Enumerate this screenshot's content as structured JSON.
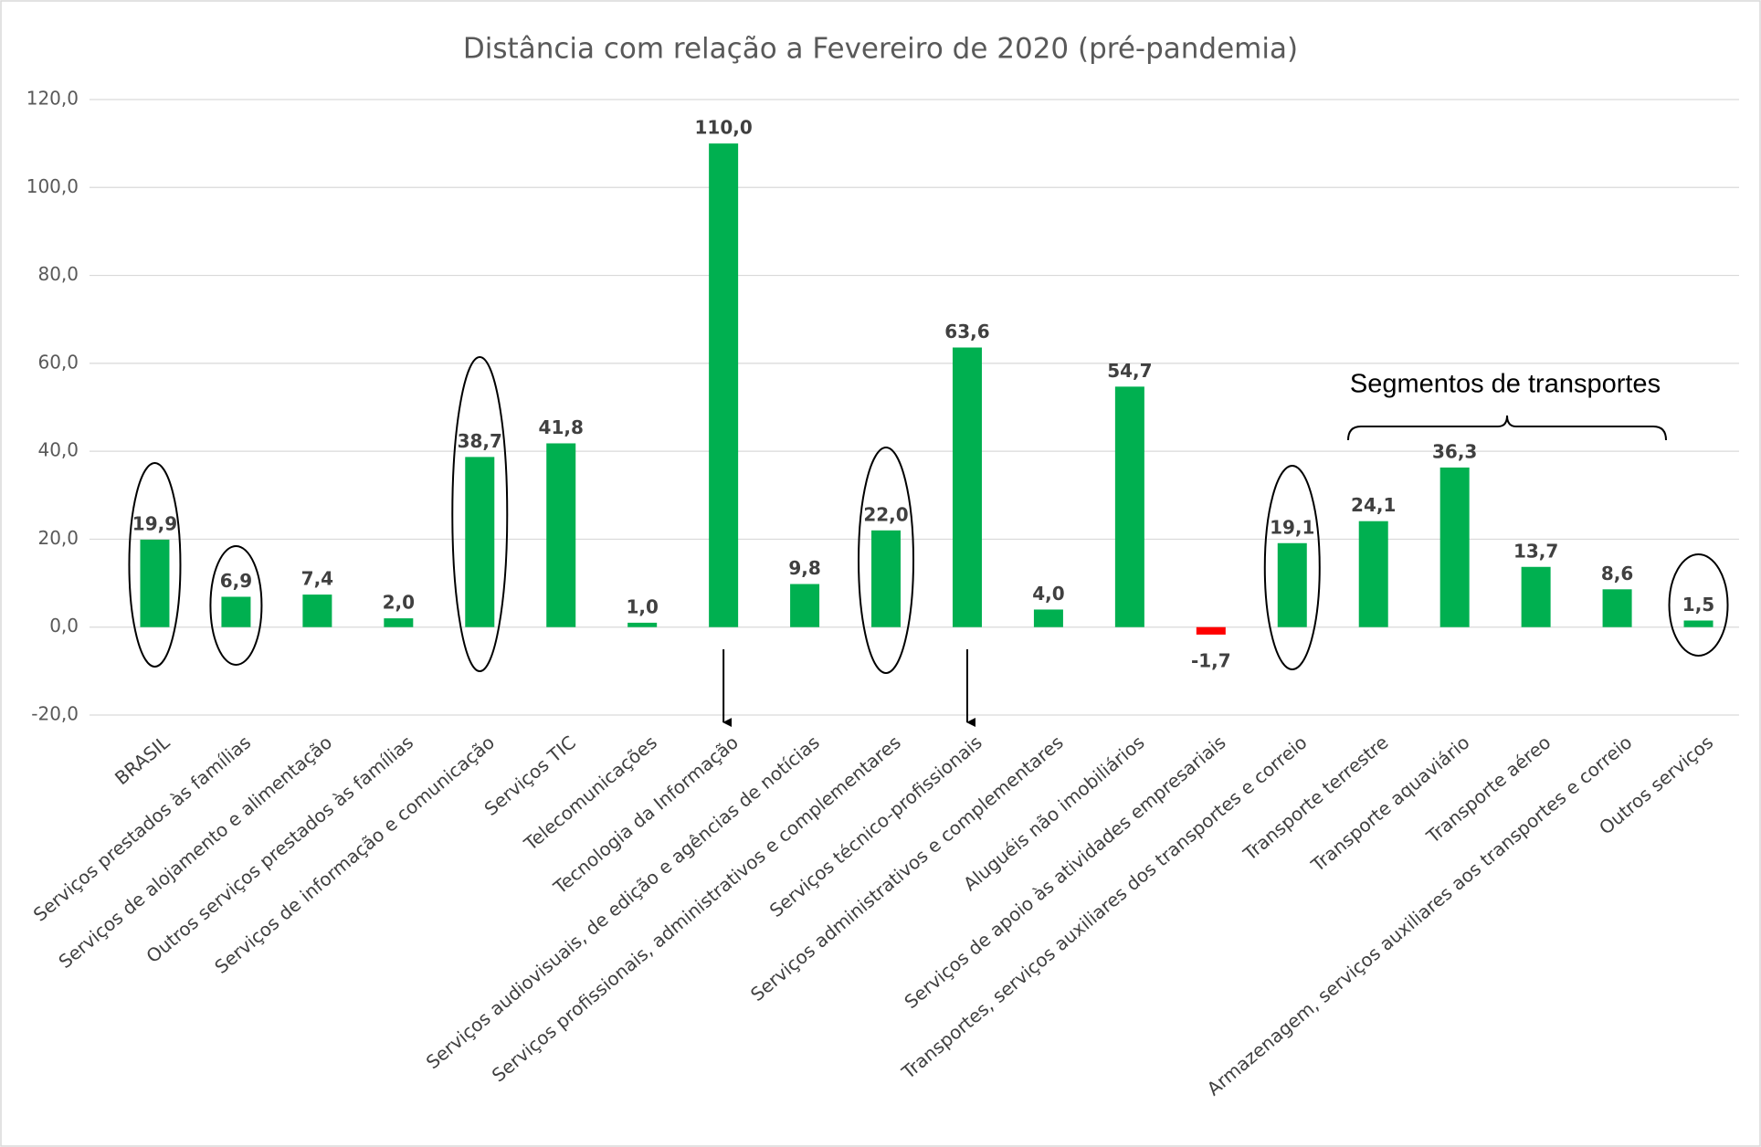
{
  "chart_data": {
    "type": "bar",
    "title": "Distância com relação a Fevereiro de 2020 (pré-pandemia)",
    "annotations": [
      "Segmentos de transportes"
    ],
    "categories": [
      "BRASIL",
      "Serviços prestados às famílias",
      "Serviços de alojamento e alimentação",
      "Outros serviços prestados às famílias",
      "Serviços de informação e comunicação",
      "Serviços TIC",
      "Telecomunicações",
      "Tecnologia da Informação",
      "Serviços audiovisuais, de edição e agências de notícias",
      "Serviços profissionais, administrativos  e complementares",
      "Serviços técnico-profissionais",
      "Serviços administrativos e complementares",
      "Aluguéis não imobiliários",
      "Serviços de apoio às atividades empresariais",
      "Transportes, serviços auxiliares dos transportes e correio",
      "Transporte terrestre",
      "Transporte aquaviário",
      "Transporte aéreo",
      "Armazenagem, serviços auxiliares aos transportes e correio",
      "Outros serviços"
    ],
    "values": [
      19.9,
      6.9,
      7.4,
      2.0,
      38.7,
      41.8,
      1.0,
      110.0,
      9.8,
      22.0,
      63.6,
      4.0,
      54.7,
      -1.7,
      19.1,
      24.1,
      36.3,
      13.7,
      8.6,
      1.5
    ],
    "value_labels": [
      "19,9",
      "6,9",
      "7,4",
      "2,0",
      "38,7",
      "41,8",
      "1,0",
      "110,0",
      "9,8",
      "22,0",
      "63,6",
      "4,0",
      "54,7",
      "-1,7",
      "19,1",
      "24,1",
      "36,3",
      "13,7",
      "8,6",
      "1,5"
    ],
    "colors": [
      "#00b050",
      "#00b050",
      "#00b050",
      "#00b050",
      "#00b050",
      "#00b050",
      "#00b050",
      "#00b050",
      "#00b050",
      "#00b050",
      "#00b050",
      "#00b050",
      "#00b050",
      "#ff0000",
      "#00b050",
      "#00b050",
      "#00b050",
      "#00b050",
      "#00b050",
      "#00b050"
    ],
    "ylim": [
      -20,
      120
    ],
    "yticks": [
      {
        "value": -20,
        "label": "-20,0"
      },
      {
        "value": 0,
        "label": "0,0"
      },
      {
        "value": 20,
        "label": "20,0"
      },
      {
        "value": 40,
        "label": "40,0"
      },
      {
        "value": 60,
        "label": "60,0"
      },
      {
        "value": 80,
        "label": "80,0"
      },
      {
        "value": 100,
        "label": "100,0"
      },
      {
        "value": 120,
        "label": "120,0"
      }
    ],
    "grid": true
  }
}
